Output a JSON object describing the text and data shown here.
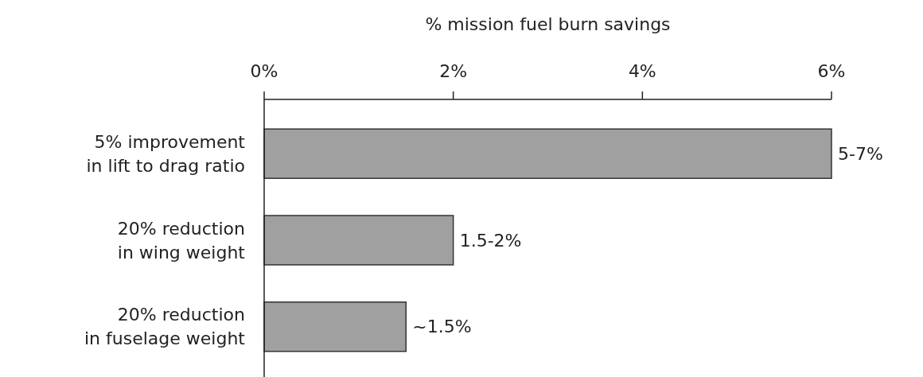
{
  "chart_data": {
    "type": "bar",
    "orientation": "horizontal",
    "xlabel": "% mission fuel burn savings",
    "categories": [
      "5% improvement\nin lift to drag ratio",
      "20% reduction\nin wing weight",
      "20% reduction\nin fuselage weight"
    ],
    "values": [
      6,
      2,
      1.5
    ],
    "color": "#a0a0a0",
    "annotations": [
      {
        "text": "5-7%",
        "x": 6,
        "y": "5% improvement\nin lift to drag ratio"
      },
      {
        "text": "1.5-2%",
        "x": 2,
        "y": "20% reduction\nin wing weight"
      },
      {
        "text": "~1.5%",
        "x": 1.5,
        "y": "20% reduction\nin fuselage weight"
      }
    ],
    "xlim": [
      0,
      6
    ],
    "xticks": [
      {
        "value": 0,
        "label": "0%"
      },
      {
        "value": 2,
        "label": "2%"
      },
      {
        "value": 4,
        "label": "4%"
      },
      {
        "value": 6,
        "label": "6%"
      }
    ],
    "grid": false
  }
}
